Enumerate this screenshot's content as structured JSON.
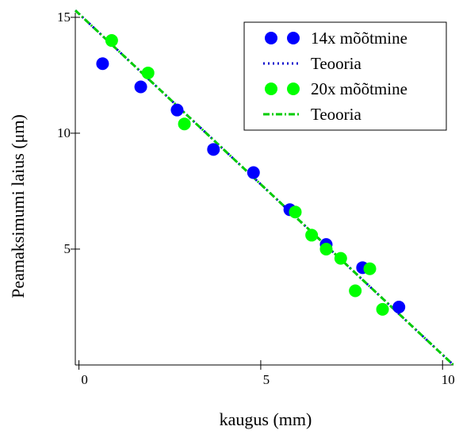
{
  "chart_data": {
    "type": "scatter",
    "title": "",
    "xlabel": "kaugus (mm)",
    "ylabel": "Peamaksimumi laius (μm)",
    "xlim": [
      -0.1,
      10.3
    ],
    "ylim": [
      0,
      15.2
    ],
    "x_ticks": [
      0,
      5,
      10
    ],
    "y_ticks": [
      5,
      10,
      15
    ],
    "grid": false,
    "legend_position": "top-right",
    "series": [
      {
        "name": "14x mõõtmine",
        "kind": "scatter",
        "color": "#0000ff",
        "points": [
          [
            0.65,
            13.0
          ],
          [
            1.7,
            12.0
          ],
          [
            2.7,
            11.0
          ],
          [
            3.7,
            9.3
          ],
          [
            4.8,
            8.3
          ],
          [
            5.8,
            6.7
          ],
          [
            6.8,
            5.2
          ],
          [
            7.8,
            4.2
          ],
          [
            8.8,
            2.5
          ]
        ]
      },
      {
        "name": "Teooria",
        "kind": "line",
        "style": "dotted",
        "color": "#0000cc",
        "points": [
          [
            -0.1,
            15.3
          ],
          [
            10.3,
            0.0
          ]
        ]
      },
      {
        "name": "20x mõõtmine",
        "kind": "scatter",
        "color": "#00ff00",
        "points": [
          [
            0.9,
            14.0
          ],
          [
            1.9,
            12.6
          ],
          [
            2.9,
            10.4
          ],
          [
            5.95,
            6.6
          ],
          [
            6.4,
            5.6
          ],
          [
            6.8,
            5.0
          ],
          [
            7.2,
            4.6
          ],
          [
            7.6,
            3.2
          ],
          [
            8.0,
            4.15
          ],
          [
            8.35,
            2.4
          ]
        ]
      },
      {
        "name": "Teooria",
        "kind": "line",
        "style": "dashdot",
        "color": "#00cc00",
        "points": [
          [
            -0.1,
            15.3
          ],
          [
            10.3,
            0.0
          ]
        ]
      }
    ]
  }
}
